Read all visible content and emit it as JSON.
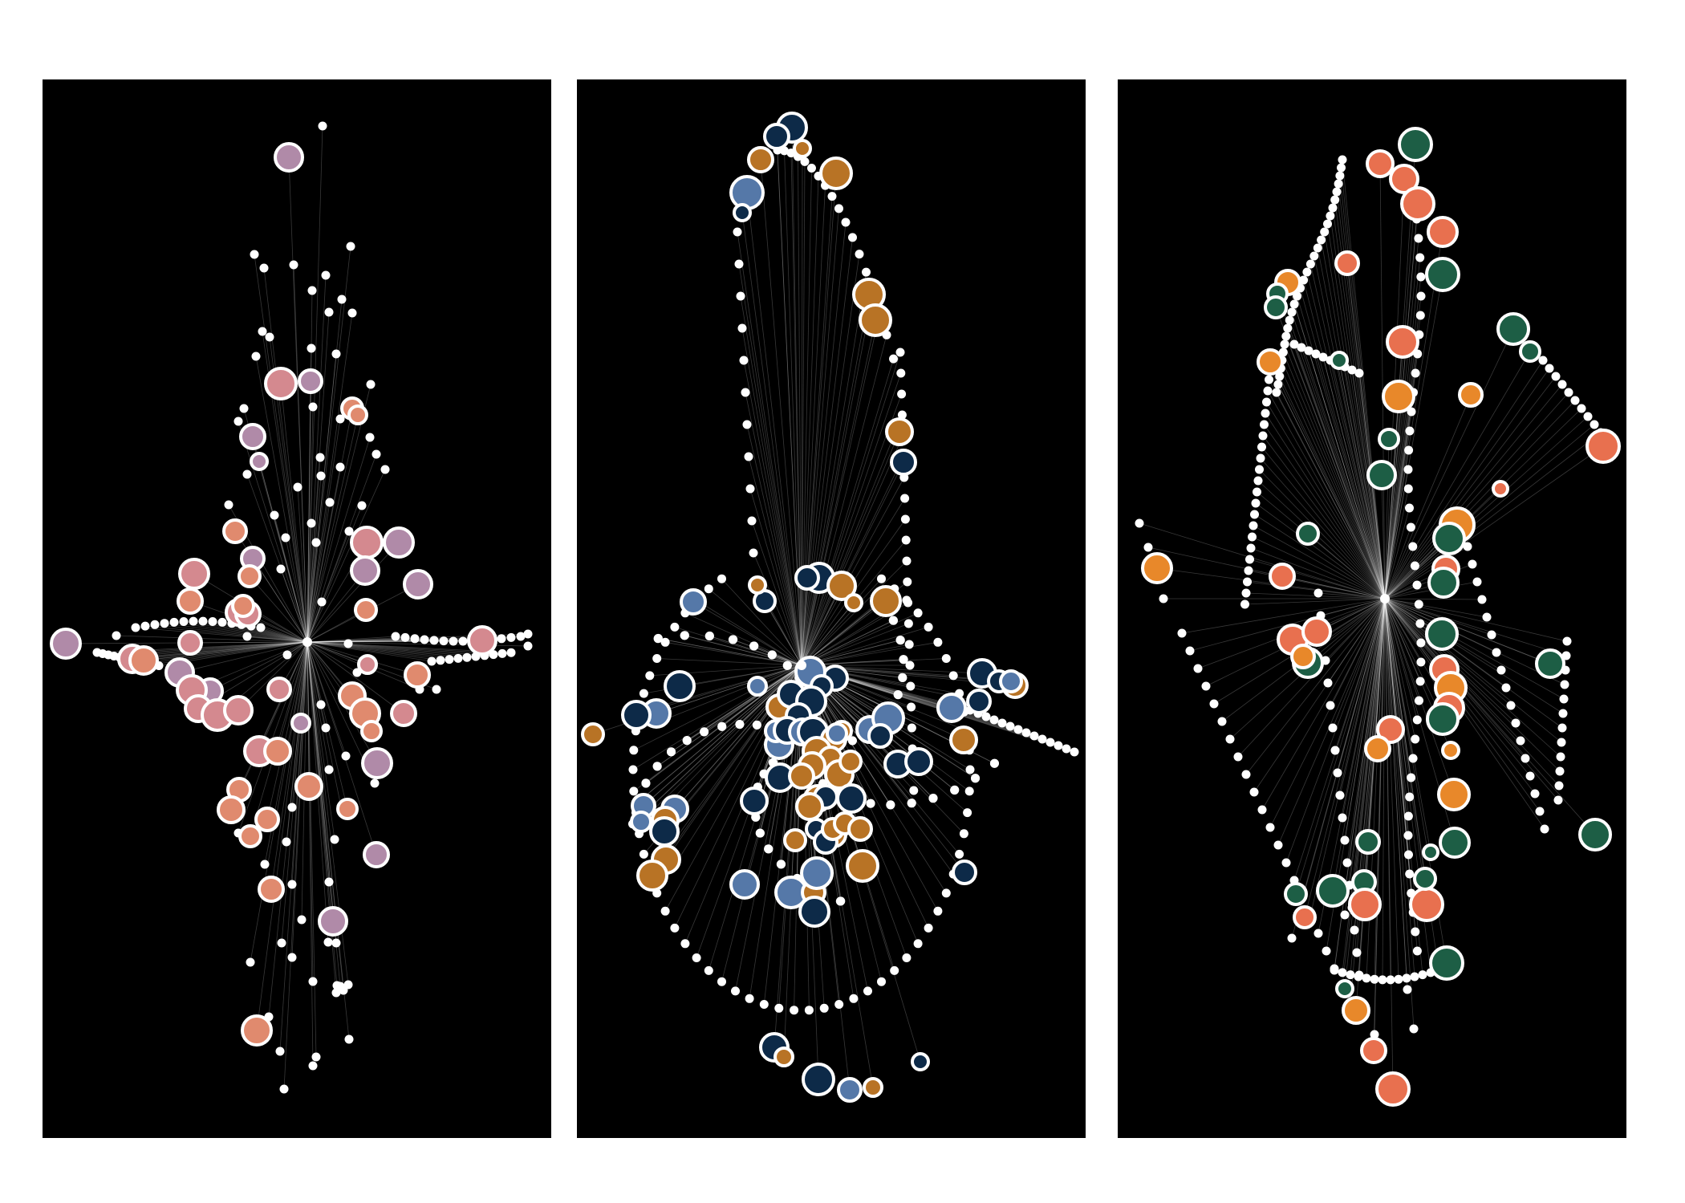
{
  "figure": {
    "background": "#ffffff",
    "panel_background": "#000000",
    "edge_color": "#ffffff",
    "node_outline_color": "#ffffff",
    "leaf_node_color": "#ffffff"
  },
  "panels": [
    {
      "id": "panel-1",
      "palette": {
        "pink": "#d4898f",
        "mauve": "#b08aa8",
        "salmon": "#e08a6e"
      }
    },
    {
      "id": "panel-2",
      "palette": {
        "navy": "#0d2a48",
        "steel_blue": "#5578a8",
        "ochre": "#b87325"
      }
    },
    {
      "id": "panel-3",
      "palette": {
        "green": "#1d5e45",
        "coral": "#e8704f",
        "orange": "#e8882a"
      }
    }
  ]
}
